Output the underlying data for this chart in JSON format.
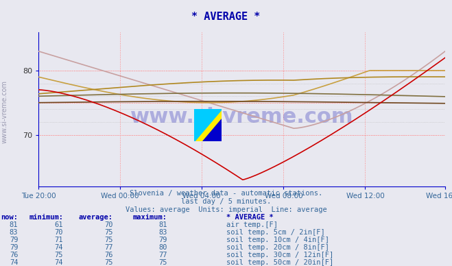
{
  "title": "* AVERAGE *",
  "background_color": "#e8e8f0",
  "plot_bg_color": "#e8e8f0",
  "subtitle1": "Slovenia / weather data - automatic stations.",
  "subtitle2": "last day / 5 minutes.",
  "subtitle3": "Values: average  Units: imperial  Line: average",
  "x_tick_labels": [
    "Tue 20:00",
    "Wed 00:00",
    "Wed 04:00",
    "Wed 08:00",
    "Wed 12:00",
    "Wed 16:00"
  ],
  "x_tick_positions": [
    0,
    48,
    96,
    144,
    192,
    239
  ],
  "y_ticks": [
    70,
    80
  ],
  "y_min": 62,
  "y_max": 86,
  "watermark": "www.si-vreme.com",
  "series": [
    {
      "name": "air temp.[F]",
      "color": "#cc0000",
      "now": 81,
      "min": 61,
      "avg": 70,
      "max": 81
    },
    {
      "name": "soil temp. 5cm / 2in[F]",
      "color": "#c8a0a0",
      "now": 83,
      "min": 70,
      "avg": 75,
      "max": 83
    },
    {
      "name": "soil temp. 10cm / 4in[F]",
      "color": "#c8a040",
      "now": 79,
      "min": 71,
      "avg": 75,
      "max": 79
    },
    {
      "name": "soil temp. 20cm / 8in[F]",
      "color": "#b08820",
      "now": 79,
      "min": 74,
      "avg": 77,
      "max": 80
    },
    {
      "name": "soil temp. 30cm / 12in[F]",
      "color": "#807040",
      "now": 76,
      "min": 75,
      "avg": 76,
      "max": 77
    },
    {
      "name": "soil temp. 50cm / 20in[F]",
      "color": "#704820",
      "now": 74,
      "min": 74,
      "avg": 75,
      "max": 75
    }
  ],
  "legend_colors": [
    "#cc0000",
    "#c8a0a0",
    "#c8a040",
    "#b08820",
    "#807040",
    "#704820"
  ],
  "grid_color": "#ff9999",
  "grid_dotted_color": "#aaaaaa"
}
